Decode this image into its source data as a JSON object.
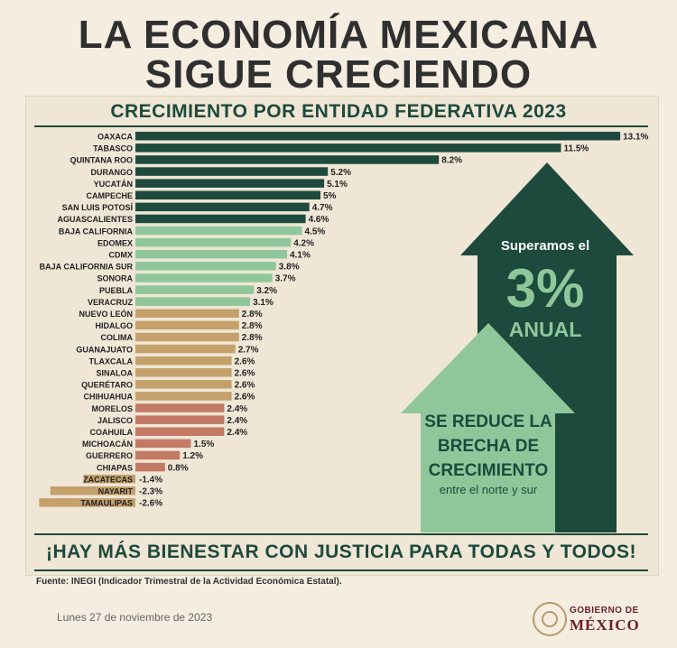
{
  "header": {
    "title_line1": "LA ECONOMÍA MEXICANA",
    "title_line2": "SIGUE CRECIENDO"
  },
  "chart_data": {
    "type": "bar",
    "orientation": "horizontal",
    "title": "CRECIMIENTO POR ENTIDAD FEDERATIVA 2023",
    "categories": [
      "OAXACA",
      "TABASCO",
      "QUINTANA ROO",
      "DURANGO",
      "YUCATÁN",
      "CAMPECHE",
      "SAN LUIS POTOSÍ",
      "AGUASCALIENTES",
      "BAJA CALIFORNIA",
      "EDOMEX",
      "CDMX",
      "BAJA CALIFORNIA SUR",
      "SONORA",
      "PUEBLA",
      "VERACRUZ",
      "NUEVO LEÓN",
      "HIDALGO",
      "COLIMA",
      "GUANAJUATO",
      "TLAXCALA",
      "SINALOA",
      "QUERÉTARO",
      "CHIHUAHUA",
      "MORELOS",
      "JALISCO",
      "COAHUILA",
      "MICHOACÁN",
      "GUERRERO",
      "CHIAPAS",
      "ZACATECAS",
      "NAYARIT",
      "TAMAULIPAS"
    ],
    "values": [
      13.1,
      11.5,
      8.2,
      5.2,
      5.1,
      5,
      4.7,
      4.6,
      4.5,
      4.2,
      4.1,
      3.8,
      3.7,
      3.2,
      3.1,
      2.8,
      2.8,
      2.8,
      2.7,
      2.6,
      2.6,
      2.6,
      2.6,
      2.4,
      2.4,
      2.4,
      1.5,
      1.2,
      0.8,
      -1.4,
      -2.3,
      -2.6
    ],
    "value_labels": [
      "13.1%",
      "11.5%",
      "8.2%",
      "5.2%",
      "5.1%",
      "5%",
      "4.7%",
      "4.6%",
      "4.5%",
      "4.2%",
      "4.1%",
      "3.8%",
      "3.7%",
      "3.2%",
      "3.1%",
      "2.8%",
      "2.8%",
      "2.8%",
      "2.7%",
      "2.6%",
      "2.6%",
      "2.6%",
      "2.6%",
      "2.4%",
      "2.4%",
      "2.4%",
      "1.5%",
      "1.2%",
      "0.8%",
      "-1.4%",
      "-2.3%",
      "-2.6%"
    ],
    "bar_colors": [
      "#1d4a3c",
      "#1d4a3c",
      "#1d4a3c",
      "#1d4a3c",
      "#1d4a3c",
      "#1d4a3c",
      "#1d4a3c",
      "#1d4a3c",
      "#8fc79a",
      "#8fc79a",
      "#8fc79a",
      "#8fc79a",
      "#8fc79a",
      "#8fc79a",
      "#8fc79a",
      "#c4a06a",
      "#c4a06a",
      "#c4a06a",
      "#c4a06a",
      "#c4a06a",
      "#c4a06a",
      "#c4a06a",
      "#c4a06a",
      "#c27a64",
      "#c27a64",
      "#c27a64",
      "#c27a64",
      "#c27a64",
      "#c27a64",
      "#c4a06a",
      "#c4a06a",
      "#c4a06a"
    ],
    "xlim": [
      -2.6,
      13.1
    ]
  },
  "callouts": {
    "big_arrow_line1": "Superamos el",
    "big_arrow_percent": "3%",
    "big_arrow_line3": "ANUAL",
    "small_arrow_line1": "SE REDUCE LA",
    "small_arrow_line2": "BRECHA DE",
    "small_arrow_line3": "CRECIMIENTO",
    "small_arrow_line4": "entre el norte y sur"
  },
  "banner": {
    "text": "¡HAY MÁS BIENESTAR CON JUSTICIA PARA TODAS Y TODOS!"
  },
  "footer": {
    "source": "Fuente: INEGI (Indicador Trimestral de la Actividad Económica Estatal).",
    "date": "Lunes 27 de noviembre de 2023",
    "gov_line1": "GOBIERNO DE",
    "gov_line2": "MÉXICO"
  },
  "colors": {
    "dark_green": "#1d4a3c",
    "light_green": "#8fc79a",
    "gold": "#c4a06a",
    "terracotta": "#c27a64",
    "guinda": "#6b1f2a"
  }
}
